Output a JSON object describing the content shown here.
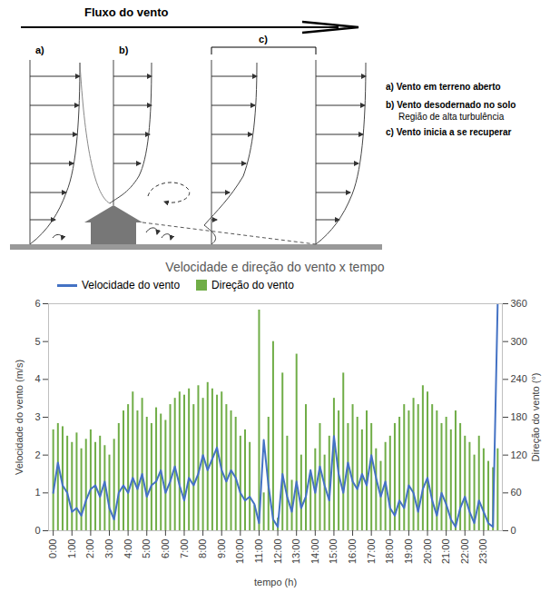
{
  "diagram": {
    "title": "Fluxo do vento",
    "profile_labels": [
      "a)",
      "b)",
      "c)"
    ],
    "notes": [
      "a) Vento em terreno aberto",
      "b) Vento desodernado no solo",
      "Região de alta turbulência",
      "c) Vento inicia a se recuperar"
    ]
  },
  "chart_data": {
    "type": "line",
    "title": "Velocidade e direção do vento x tempo",
    "xlabel": "tempo (h)",
    "ylabel": "Velocidade do vento (m/s)",
    "y2label": "Direção do vento (°)",
    "x": [
      0,
      0.25,
      0.5,
      0.75,
      1,
      1.25,
      1.5,
      1.75,
      2,
      2.25,
      2.5,
      2.75,
      3,
      3.25,
      3.5,
      3.75,
      4,
      4.25,
      4.5,
      4.75,
      5,
      5.25,
      5.5,
      5.75,
      6,
      6.25,
      6.5,
      6.75,
      7,
      7.25,
      7.5,
      7.75,
      8,
      8.25,
      8.5,
      8.75,
      9,
      9.25,
      9.5,
      9.75,
      10,
      10.25,
      10.5,
      10.75,
      11,
      11.25,
      11.5,
      11.75,
      12,
      12.25,
      12.5,
      12.75,
      13,
      13.25,
      13.5,
      13.75,
      14,
      14.25,
      14.5,
      14.75,
      15,
      15.25,
      15.5,
      15.75,
      16,
      16.25,
      16.5,
      16.75,
      17,
      17.25,
      17.5,
      17.75,
      18,
      18.25,
      18.5,
      18.75,
      19,
      19.25,
      19.5,
      19.75,
      20,
      20.25,
      20.5,
      20.75,
      21,
      21.25,
      21.5,
      21.75,
      22,
      22.25,
      22.5,
      22.75,
      23,
      23.25,
      23.5,
      23.75
    ],
    "series": [
      {
        "name": "Velocidade do vento",
        "type": "line",
        "color": "#4472c4",
        "values": [
          1.0,
          1.8,
          1.2,
          1.0,
          0.5,
          0.6,
          0.4,
          0.8,
          1.1,
          1.2,
          0.9,
          1.3,
          0.6,
          0.3,
          1.0,
          1.2,
          1.0,
          1.4,
          1.1,
          1.5,
          0.9,
          1.2,
          1.3,
          1.6,
          1.0,
          1.3,
          1.7,
          1.2,
          0.8,
          1.4,
          1.2,
          1.5,
          2.0,
          1.6,
          1.9,
          2.2,
          1.6,
          1.3,
          1.6,
          1.4,
          1.0,
          0.8,
          0.9,
          0.7,
          0.2,
          2.4,
          1.2,
          0.3,
          0.1,
          1.5,
          0.9,
          0.5,
          1.3,
          0.6,
          0.9,
          1.6,
          1.0,
          1.7,
          1.2,
          0.8,
          2.5,
          1.5,
          1.0,
          1.8,
          1.3,
          1.1,
          1.5,
          1.2,
          2.0,
          1.4,
          0.9,
          1.3,
          0.6,
          0.4,
          0.8,
          0.6,
          1.2,
          1.0,
          0.5,
          1.1,
          1.4,
          0.8,
          0.4,
          1.0,
          0.7,
          0.3,
          0.1,
          0.6,
          0.9,
          0.5,
          0.2,
          0.8,
          0.5,
          0.2,
          0.1,
          6.0
        ]
      },
      {
        "name": "Direção do vento",
        "type": "bar",
        "color": "#70ad47",
        "axis": "y2",
        "values": [
          160,
          170,
          165,
          150,
          140,
          155,
          130,
          145,
          160,
          140,
          150,
          135,
          120,
          145,
          170,
          190,
          200,
          220,
          190,
          210,
          180,
          170,
          195,
          185,
          175,
          200,
          210,
          220,
          215,
          225,
          200,
          230,
          210,
          235,
          225,
          215,
          220,
          200,
          190,
          180,
          150,
          160,
          140,
          40,
          350,
          60,
          180,
          300,
          20,
          250,
          150,
          80,
          280,
          120,
          200,
          90,
          130,
          170,
          120,
          150,
          210,
          190,
          250,
          170,
          200,
          180,
          160,
          190,
          170,
          130,
          110,
          140,
          150,
          170,
          180,
          200,
          190,
          210,
          200,
          230,
          220,
          200,
          190,
          170,
          180,
          160,
          190,
          170,
          150,
          140,
          120,
          150,
          130,
          110,
          100,
          130
        ]
      }
    ],
    "xlim": [
      -0.25,
      24
    ],
    "xticks": [
      {
        "value": 0,
        "label": "0:00"
      },
      {
        "value": 1,
        "label": "1:00"
      },
      {
        "value": 2,
        "label": "2:00"
      },
      {
        "value": 3,
        "label": "3:00"
      },
      {
        "value": 4,
        "label": "4:00"
      },
      {
        "value": 5,
        "label": "5:00"
      },
      {
        "value": 6,
        "label": "6:00"
      },
      {
        "value": 7,
        "label": "7:00"
      },
      {
        "value": 8,
        "label": "8:00"
      },
      {
        "value": 9,
        "label": "9:00"
      },
      {
        "value": 10,
        "label": "10:00"
      },
      {
        "value": 11,
        "label": "11:00"
      },
      {
        "value": 12,
        "label": "12:00"
      },
      {
        "value": 13,
        "label": "13:00"
      },
      {
        "value": 14,
        "label": "14:00"
      },
      {
        "value": 15,
        "label": "15:00"
      },
      {
        "value": 16,
        "label": "16:00"
      },
      {
        "value": 17,
        "label": "17:00"
      },
      {
        "value": 18,
        "label": "18:00"
      },
      {
        "value": 19,
        "label": "19:00"
      },
      {
        "value": 20,
        "label": "20:00"
      },
      {
        "value": 21,
        "label": "21:00"
      },
      {
        "value": 22,
        "label": "22:00"
      },
      {
        "value": 23,
        "label": "23:00"
      }
    ],
    "ylim": [
      0,
      6
    ],
    "yticks": [
      0,
      1,
      2,
      3,
      4,
      5,
      6
    ],
    "y2lim": [
      0,
      360
    ],
    "y2ticks": [
      0,
      60,
      120,
      180,
      240,
      300,
      360
    ],
    "grid": false,
    "legend": "top"
  }
}
